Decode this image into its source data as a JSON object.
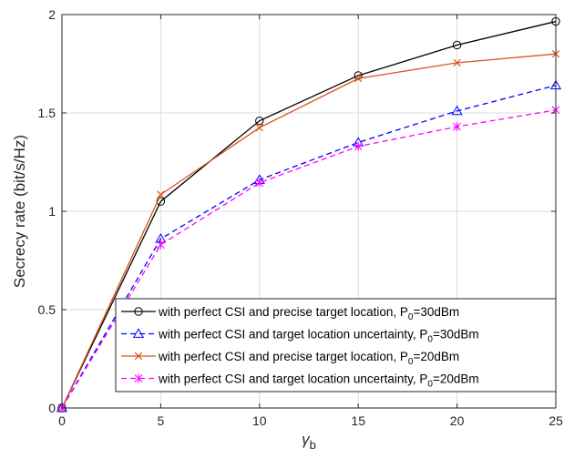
{
  "chart_data": {
    "type": "line",
    "title": "",
    "xlabel_symbol": "γ",
    "xlabel_subscript": "b",
    "ylabel": "Secrecy rate (bit/s/Hz)",
    "xlim": [
      0,
      25
    ],
    "ylim": [
      0,
      2
    ],
    "xticks": [
      0,
      5,
      10,
      15,
      20,
      25
    ],
    "xtick_labels": [
      "0",
      "5",
      "10",
      "15",
      "20",
      "25"
    ],
    "yticks": [
      0,
      0.5,
      1,
      1.5,
      2
    ],
    "ytick_labels": [
      "0",
      "0.5",
      "1",
      "1.5",
      "2"
    ],
    "grid": true,
    "legend_position": "bottom-right",
    "x": [
      0,
      5,
      10,
      15,
      20,
      25
    ],
    "series": [
      {
        "name": "with perfect CSI and precise target location, P",
        "name_subscript": "0",
        "name_suffix": "=30dBm",
        "values": [
          0,
          1.05,
          1.46,
          1.69,
          1.845,
          1.965
        ],
        "color": "#000000",
        "marker": "circle",
        "dash": "solid"
      },
      {
        "name": "with perfect CSI and target location uncertainty, P",
        "name_subscript": "0",
        "name_suffix": "=30dBm",
        "values": [
          0,
          0.86,
          1.16,
          1.35,
          1.51,
          1.64
        ],
        "color": "#0000ff",
        "marker": "triangle",
        "dash": "dashed"
      },
      {
        "name": "with perfect CSI and precise target location, P",
        "name_subscript": "0",
        "name_suffix": "=20dBm",
        "values": [
          0,
          1.085,
          1.425,
          1.675,
          1.755,
          1.8
        ],
        "color": "#d95319",
        "marker": "x",
        "dash": "solid"
      },
      {
        "name": "with perfect CSI and target location uncertainty, P",
        "name_subscript": "0",
        "name_suffix": "=20dBm",
        "values": [
          0,
          0.83,
          1.145,
          1.33,
          1.43,
          1.515
        ],
        "color": "#ff00ff",
        "marker": "asterisk",
        "dash": "dashed"
      }
    ]
  }
}
